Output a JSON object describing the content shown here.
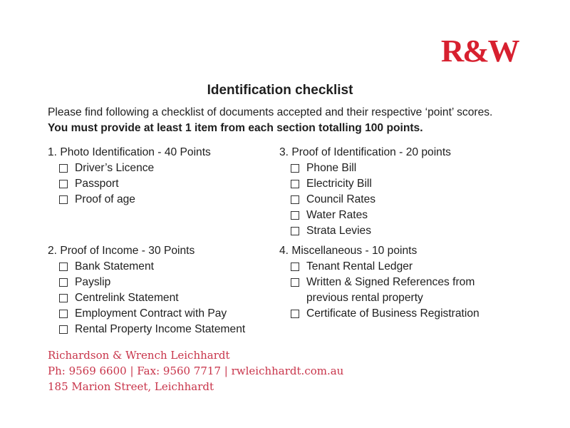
{
  "logo": {
    "text": "R&W",
    "color": "#d7202f"
  },
  "title": "Identification checklist",
  "intro": {
    "line1": "Please find following a checklist of documents accepted and their respective ‘point’ scores.",
    "line2": "You must provide at least 1 item from each section totalling 100 points."
  },
  "sections": [
    {
      "heading": "1. Photo Identification - 40 Points",
      "items": [
        "Driver’s Licence",
        "Passport",
        "Proof of age"
      ]
    },
    {
      "heading": "2. Proof of Income - 30 Points",
      "items": [
        "Bank Statement",
        "Payslip",
        "Centrelink Statement",
        "Employment Contract with Pay",
        "Rental Property Income Statement"
      ]
    },
    {
      "heading": "3. Proof of Identification - 20 points",
      "items": [
        "Phone Bill",
        "Electricity Bill",
        "Council Rates",
        "Water Rates",
        "Strata Levies"
      ]
    },
    {
      "heading": "4. Miscellaneous - 10 points",
      "items": [
        "Tenant Rental Ledger",
        "Written & Signed References from previous rental property",
        "Certificate of Business Registration"
      ]
    }
  ],
  "footer": {
    "name": "Richardson & Wrench Leichhardt",
    "contact": "Ph: 9569 6600 | Fax: 9560 7717 | rwleichhardt.com.au",
    "address": "185 Marion Street, Leichhardt",
    "color": "#c8344a"
  }
}
